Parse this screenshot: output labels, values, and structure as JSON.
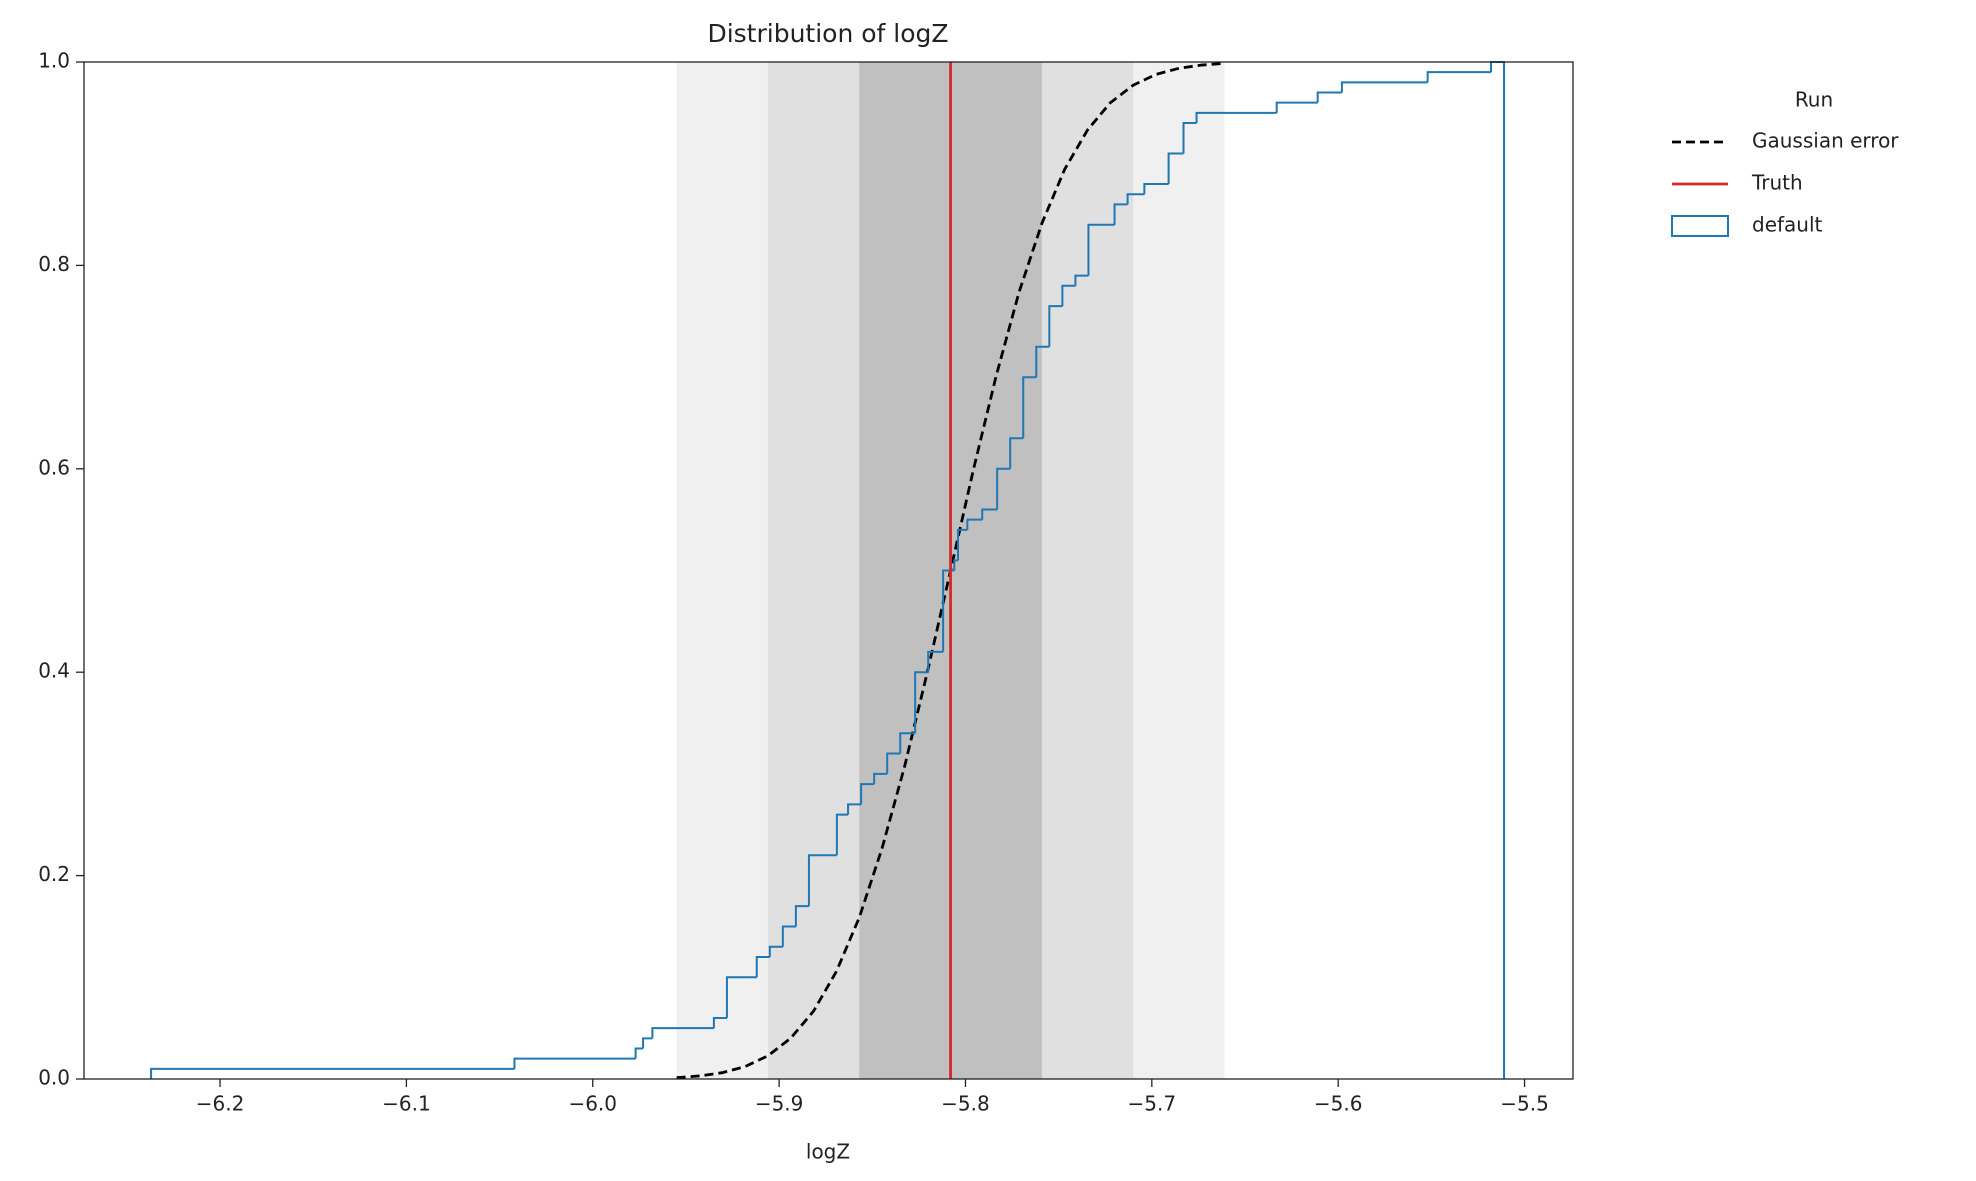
{
  "chart_data": {
    "type": "ecdf",
    "title": "Distribution of logZ",
    "x_label": "logZ",
    "xlim": [
      -6.273,
      -5.474
    ],
    "ylim": [
      0,
      1
    ],
    "xticks": [
      {
        "value": -6.2,
        "label": "−6.2"
      },
      {
        "value": -6.1,
        "label": "−6.1"
      },
      {
        "value": -6.0,
        "label": "−6.0"
      },
      {
        "value": -5.9,
        "label": "−5.9"
      },
      {
        "value": -5.8,
        "label": "−5.8"
      },
      {
        "value": -5.7,
        "label": "−5.7"
      },
      {
        "value": -5.6,
        "label": "−5.6"
      },
      {
        "value": -5.5,
        "label": "−5.5"
      }
    ],
    "yticks": [
      {
        "value": 0,
        "label": "0.0"
      },
      0.2,
      0.4,
      0.6,
      0.8,
      {
        "value": 1,
        "label": "1.0"
      }
    ],
    "legend_title": "Run",
    "legend": "outside upper right",
    "bands": [
      {
        "xlim": [
          -5.955,
          -5.661
        ],
        "color": "#f0f0f0"
      },
      {
        "xlim": [
          -5.906,
          -5.71
        ],
        "color": "#e0e0e0"
      },
      {
        "xlim": [
          -5.857,
          -5.759
        ],
        "color": "#c0c0c0"
      }
    ],
    "gaussian": {
      "name": "Gaussian error",
      "color": "#000000",
      "x": [
        -5.955,
        -5.9428,
        -5.9305,
        -5.9183,
        -5.906,
        -5.8938,
        -5.8815,
        -5.8693,
        -5.857,
        -5.8448,
        -5.8325,
        -5.8203,
        -5.808,
        -5.7958,
        -5.7835,
        -5.7713,
        -5.759,
        -5.7468,
        -5.7345,
        -5.7223,
        -5.71,
        -5.6978,
        -5.6855,
        -5.6733,
        -5.661
      ],
      "values": [
        0.0013,
        0.003,
        0.0062,
        0.0122,
        0.0228,
        0.0401,
        0.0668,
        0.1056,
        0.1587,
        0.2266,
        0.3085,
        0.4013,
        0.5,
        0.5987,
        0.6915,
        0.7734,
        0.8413,
        0.8944,
        0.9332,
        0.9599,
        0.9772,
        0.9878,
        0.9938,
        0.997,
        0.9987
      ]
    },
    "truth": {
      "name": "Truth",
      "color": "#d62728",
      "x": -5.808
    },
    "series": [
      {
        "name": "default",
        "color": "#1f77b4",
        "bins": [
          -6.237,
          -6.042,
          -5.977,
          -5.973,
          -5.968,
          -5.935,
          -5.928,
          -5.912,
          -5.905,
          -5.898,
          -5.891,
          -5.884,
          -5.869,
          -5.863,
          -5.856,
          -5.849,
          -5.842,
          -5.835,
          -5.827,
          -5.82,
          -5.812,
          -5.806,
          -5.804,
          -5.799,
          -5.791,
          -5.783,
          -5.776,
          -5.769,
          -5.762,
          -5.755,
          -5.748,
          -5.741,
          -5.734,
          -5.72,
          -5.713,
          -5.704,
          -5.691,
          -5.683,
          -5.676,
          -5.633,
          -5.611,
          -5.598,
          -5.552,
          -5.518,
          -5.511
        ],
        "values": [
          0.01,
          0.02,
          0.03,
          0.04,
          0.05,
          0.06,
          0.1,
          0.12,
          0.13,
          0.15,
          0.17,
          0.22,
          0.26,
          0.27,
          0.29,
          0.3,
          0.32,
          0.34,
          0.4,
          0.42,
          0.5,
          0.51,
          0.54,
          0.55,
          0.56,
          0.6,
          0.63,
          0.69,
          0.72,
          0.76,
          0.78,
          0.79,
          0.84,
          0.86,
          0.87,
          0.88,
          0.91,
          0.94,
          0.95,
          0.96,
          0.97,
          0.98,
          0.99,
          1.0
        ]
      }
    ]
  }
}
